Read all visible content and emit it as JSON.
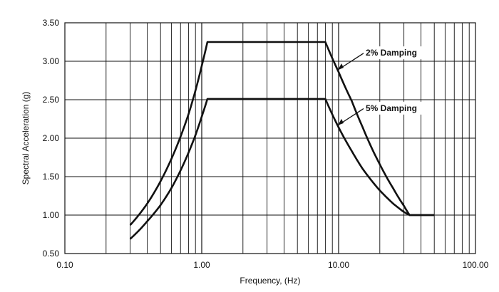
{
  "chart_data": {
    "type": "line",
    "xscale": "log",
    "xlim": [
      0.1,
      100
    ],
    "ylim": [
      0.5,
      3.5
    ],
    "xlabel": "Frequency, (Hz)",
    "ylabel": "Spectral Acceleration (g)",
    "xticks": [
      "0.10",
      "1.00",
      "10.00",
      "100.00"
    ],
    "yticks": [
      "0.50",
      "1.00",
      "1.50",
      "2.00",
      "2.50",
      "3.00",
      "3.50"
    ],
    "grid": true,
    "series": [
      {
        "name": "2% Damping",
        "x": [
          0.3,
          0.4,
          0.5,
          0.6,
          0.7,
          0.8,
          0.9,
          1.0,
          1.1,
          8.0,
          10.0,
          12.5,
          15.0,
          20.0,
          25.0,
          30.0,
          33.0,
          50.0
        ],
        "y": [
          0.87,
          1.15,
          1.44,
          1.73,
          2.02,
          2.31,
          2.62,
          2.94,
          3.25,
          3.25,
          2.86,
          2.48,
          2.14,
          1.66,
          1.35,
          1.12,
          1.0,
          1.0
        ]
      },
      {
        "name": "5% Damping",
        "x": [
          0.3,
          0.4,
          0.5,
          0.6,
          0.7,
          0.8,
          0.9,
          1.0,
          1.1,
          8.0,
          10.0,
          12.5,
          15.0,
          20.0,
          25.0,
          30.0,
          33.0,
          50.0
        ],
        "y": [
          0.69,
          0.92,
          1.13,
          1.35,
          1.58,
          1.81,
          2.04,
          2.28,
          2.51,
          2.51,
          2.14,
          1.83,
          1.6,
          1.32,
          1.15,
          1.04,
          1.0,
          1.0
        ]
      }
    ],
    "annotations": [
      {
        "text": "2% Damping",
        "series": 0,
        "x": 10.0,
        "y": 2.86
      },
      {
        "text": "5% Damping",
        "series": 1,
        "x": 10.0,
        "y": 2.14
      }
    ]
  }
}
